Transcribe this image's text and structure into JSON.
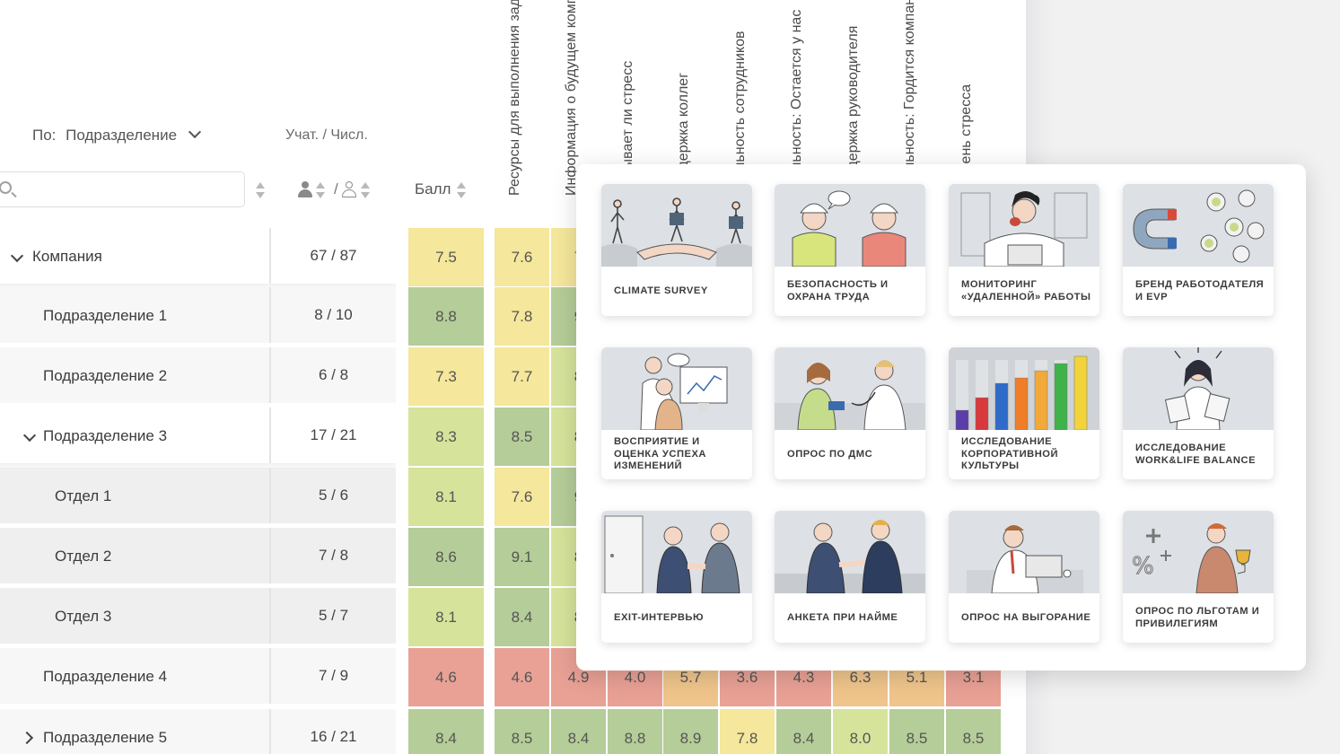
{
  "filter": {
    "prefix": "По:",
    "value": "Подразделение"
  },
  "participants_header": "Учат. / Числ.",
  "search": {
    "placeholder": ""
  },
  "participants_slash": "/",
  "score_header": "Балл",
  "question_columns": [
    "Ресурсы для выполнения задач",
    "Информация о будущем компании",
    "Вызывает ли стресс",
    "Поддержка коллег",
    "Лояльность сотрудников",
    "Лояльность: Остается у нас",
    "Поддержка руководителя",
    "Лояльность: Гордится компанией",
    "Уровень стресса"
  ],
  "rows": [
    {
      "name": "Компания",
      "participants": "67 / 87",
      "score": "7.5",
      "values": [
        "7.6",
        "7"
      ],
      "expand": "down"
    },
    {
      "name": "Подразделение 1",
      "participants": "8 / 10",
      "score": "8.8",
      "values": [
        "7.8",
        "9"
      ],
      "expand": ""
    },
    {
      "name": "Подразделение 2",
      "participants": "6 / 8",
      "score": "7.3",
      "values": [
        "7.7",
        "8"
      ],
      "expand": ""
    },
    {
      "name": "Подразделение 3",
      "participants": "17 / 21",
      "score": "8.3",
      "values": [
        "8.5",
        "8"
      ],
      "expand": "down"
    },
    {
      "name": "Отдел 1",
      "participants": "5 / 6",
      "score": "8.1",
      "values": [
        "7.6",
        "9"
      ],
      "expand": ""
    },
    {
      "name": "Отдел 2",
      "participants": "7 / 8",
      "score": "8.6",
      "values": [
        "9.1",
        "8"
      ],
      "expand": ""
    },
    {
      "name": "Отдел 3",
      "participants": "5 / 7",
      "score": "8.1",
      "values": [
        "8.4",
        "8"
      ],
      "expand": ""
    },
    {
      "name": "Подразделение 4",
      "participants": "7 / 9",
      "score": "4.6",
      "values": [
        "4.6",
        "4.9",
        "4.0",
        "5.7",
        "3.6",
        "4.3",
        "6.3",
        "5.1",
        "3.1"
      ],
      "expand": ""
    },
    {
      "name": "Подразделение 5",
      "participants": "16 / 21",
      "score": "8.4",
      "values": [
        "8.5",
        "8.4",
        "8.8",
        "8.9",
        "7.8",
        "8.4",
        "8.0",
        "8.5",
        "8.5"
      ],
      "expand": "right"
    }
  ],
  "colors": {
    "red": "#e9a195",
    "orange": "#efc58c",
    "yellow": "#f5e79b",
    "light_green": "#d6e39b",
    "green": "#b5cd98"
  },
  "templates": [
    {
      "title": "CLIMATE SURVEY",
      "icon": "hand-bridge-illustration"
    },
    {
      "title": "БЕЗОПАСНОСТЬ И ОХРАНА ТРУДА",
      "icon": "workers-helmets-illustration"
    },
    {
      "title": "МОНИТОРИНГ «УДАЛЕННОЙ» РАБОТЫ",
      "icon": "remote-worker-illustration"
    },
    {
      "title": "БРЕНД РАБОТОДАТЕЛЯ И EVP",
      "icon": "magnet-people-illustration"
    },
    {
      "title": "ВОСПРИЯТИЕ И ОЦЕНКА УСПЕХА ИЗМЕНЕНИЙ",
      "icon": "chart-meeting-illustration"
    },
    {
      "title": "ОПРОС ПО ДМС",
      "icon": "doctor-patient-illustration"
    },
    {
      "title": "ИССЛЕДОВАНИЕ КОРПОРАТИВНОЙ КУЛЬТУРЫ",
      "icon": "color-columns-illustration"
    },
    {
      "title": "ИССЛЕДОВАНИЕ WORK&LIFE BALANCE",
      "icon": "stressed-woman-illustration"
    },
    {
      "title": "EXIT-ИНТЕРВЬЮ",
      "icon": "handshake-door-illustration"
    },
    {
      "title": "АНКЕТА ПРИ НАЙМЕ",
      "icon": "handshake-interview-illustration"
    },
    {
      "title": "ОПРОС НА ВЫГОРАНИЕ",
      "icon": "tired-worker-illustration"
    },
    {
      "title": "ОПРОС ПО ЛЬГОТАМ И ПРИВИЛЕГИЯМ",
      "icon": "trophy-percent-illustration"
    }
  ]
}
